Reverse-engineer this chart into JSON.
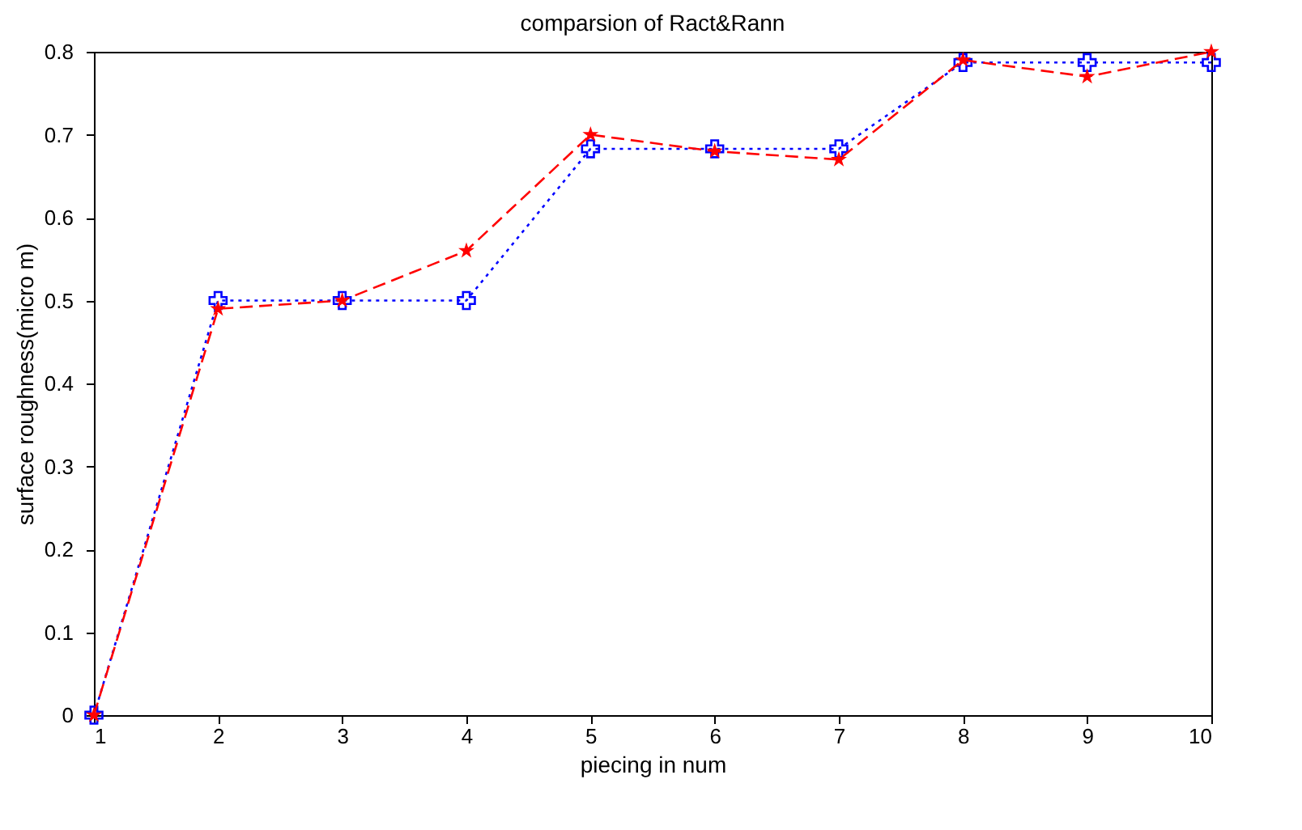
{
  "chart_data": {
    "type": "line",
    "title": "comparsion of Ract&Rann",
    "xlabel": "piecing in num",
    "ylabel": "surface roughness(micro m)",
    "x": [
      1,
      2,
      3,
      4,
      5,
      6,
      7,
      8,
      9,
      10
    ],
    "series": [
      {
        "color": "#0000ff",
        "values": [
          0,
          0.5,
          0.5,
          0.5,
          0.683,
          0.683,
          0.683,
          0.787,
          0.787,
          0.787
        ],
        "marker": "cross",
        "line_style": "dotted"
      },
      {
        "color": "#ff0000",
        "values": [
          0,
          0.49,
          0.5,
          0.56,
          0.7,
          0.68,
          0.67,
          0.79,
          0.77,
          0.8
        ],
        "marker": "star",
        "line_style": "dashed"
      }
    ],
    "xlim": [
      1,
      10
    ],
    "xticks": [
      1,
      2,
      3,
      4,
      5,
      6,
      7,
      8,
      9,
      10
    ],
    "ylim": [
      0,
      0.8
    ],
    "yticks": [
      0,
      0.1,
      0.2,
      0.3,
      0.4,
      0.5,
      0.6,
      0.7,
      0.8
    ],
    "grid": false
  }
}
